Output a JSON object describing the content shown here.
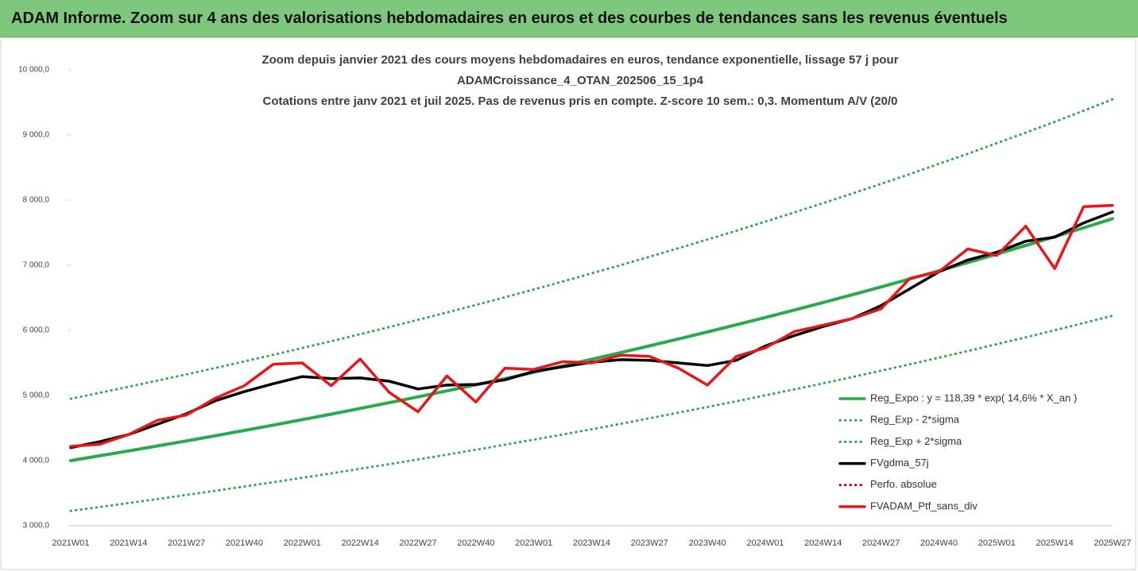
{
  "header": {
    "title": "ADAM Informe. Zoom sur 4 ans des valorisations hebdomadaires en euros et des courbes de tendances sans les revenus éventuels"
  },
  "chart_data": {
    "type": "line",
    "title": [
      "Zoom depuis janvier 2021 des cours moyens hebdomadaires  en euros, tendance exponentielle, lissage 57 j pour",
      "ADAMCroissance_4_OTAN_202506_15_1p4",
      "Cotations entre janv 2021 et juil 2025. Pas de revenus pris en compte. Z-score 10 sem.: 0,3. Momentum A/V (20/0"
    ],
    "categories": [
      "2021W01",
      null,
      "2021W14",
      null,
      "2021W27",
      null,
      "2021W40",
      null,
      "2022W01",
      null,
      "2022W14",
      null,
      "2022W27",
      null,
      "2022W40",
      null,
      "2023W01",
      null,
      "2023W14",
      null,
      "2023W27",
      null,
      "2023W40",
      null,
      "2024W01",
      null,
      "2024W14",
      null,
      "2024W27",
      null,
      "2024W40",
      null,
      "2025W01",
      null,
      "2025W14",
      null,
      "2025W27"
    ],
    "ylim": [
      3000,
      10000
    ],
    "yticks": [
      {
        "value": 3000,
        "label": "3 000,0"
      },
      {
        "value": 4000,
        "label": "4 000,0"
      },
      {
        "value": 5000,
        "label": "5 000,0"
      },
      {
        "value": 6000,
        "label": "6 000,0"
      },
      {
        "value": 7000,
        "label": "7 000,0"
      },
      {
        "value": 8000,
        "label": "8 000,0"
      },
      {
        "value": 9000,
        "label": "9 000,0"
      },
      {
        "value": 10000,
        "label": "10 000,0"
      }
    ],
    "grid": false,
    "legend": "right",
    "series": [
      {
        "name": "Reg_Expo : y = 118,39 * exp( 14,6% *  X_an )",
        "color": "#2aaa4a",
        "dash": false,
        "values": [
          4000,
          4074,
          4149,
          4225,
          4303,
          4382,
          4463,
          4545,
          4629,
          4714,
          4801,
          4889,
          4979,
          5071,
          5164,
          5259,
          5356,
          5455,
          5555,
          5657,
          5762,
          5868,
          5976,
          6086,
          6198,
          6312,
          6428,
          6546,
          6667,
          6790,
          6915,
          7042,
          7172,
          7304,
          7438,
          7575,
          7715
        ]
      },
      {
        "name": "Reg_Exp - 2*sigma",
        "color": "#2aaa4a",
        "dash": true,
        "values": [
          3228,
          3288,
          3348,
          3410,
          3473,
          3536,
          3602,
          3668,
          3736,
          3804,
          3874,
          3945,
          4018,
          4092,
          4167,
          4244,
          4322,
          4401,
          4482,
          4565,
          4650,
          4736,
          4823,
          4911,
          5002,
          5094,
          5187,
          5283,
          5380,
          5479,
          5581,
          5683,
          5788,
          5894,
          6002,
          6113,
          6226
        ]
      },
      {
        "name": "Reg_Exp + 2*sigma",
        "color": "#2aaa4a",
        "dash": true,
        "values": [
          4950,
          5042,
          5134,
          5229,
          5325,
          5423,
          5523,
          5625,
          5729,
          5834,
          5941,
          6050,
          6162,
          6275,
          6390,
          6508,
          6628,
          6751,
          6876,
          7001,
          7131,
          7262,
          7395,
          7531,
          7670,
          7811,
          7954,
          8101,
          8250,
          8401,
          8557,
          8712,
          8874,
          9036,
          9202,
          9373,
          9547
        ]
      },
      {
        "name": "FVgdma_57j",
        "color": "#000000",
        "dash": false,
        "values": [
          4200,
          4290,
          4400,
          4560,
          4720,
          4920,
          5060,
          5180,
          5290,
          5260,
          5270,
          5220,
          5100,
          5160,
          5170,
          5240,
          5370,
          5440,
          5510,
          5550,
          5540,
          5500,
          5460,
          5540,
          5760,
          5920,
          6060,
          6180,
          6380,
          6640,
          6900,
          7080,
          7200,
          7370,
          7430,
          7650,
          7820
        ]
      },
      {
        "name": "Perfo. absolue",
        "color": "#c00000",
        "dash": true,
        "values": [
          null,
          null,
          null,
          null,
          null,
          null,
          null,
          null,
          null,
          null,
          null,
          null,
          null,
          null,
          null,
          null,
          null,
          null,
          null,
          null,
          null,
          null,
          null,
          null,
          null,
          null,
          null,
          null,
          null,
          null,
          null,
          null,
          null,
          null,
          null,
          null,
          null
        ]
      },
      {
        "name": "FVADAM_Ptf_sans_div",
        "color": "#e8161b",
        "dash": false,
        "values": [
          4220,
          4250,
          4400,
          4620,
          4700,
          4960,
          5150,
          5480,
          5500,
          5150,
          5560,
          5050,
          4750,
          5300,
          4900,
          5420,
          5400,
          5520,
          5500,
          5620,
          5600,
          5420,
          5160,
          5600,
          5730,
          5980,
          6080,
          6180,
          6330,
          6800,
          6900,
          7250,
          7150,
          7600,
          6950,
          7900,
          7920
        ]
      }
    ]
  }
}
